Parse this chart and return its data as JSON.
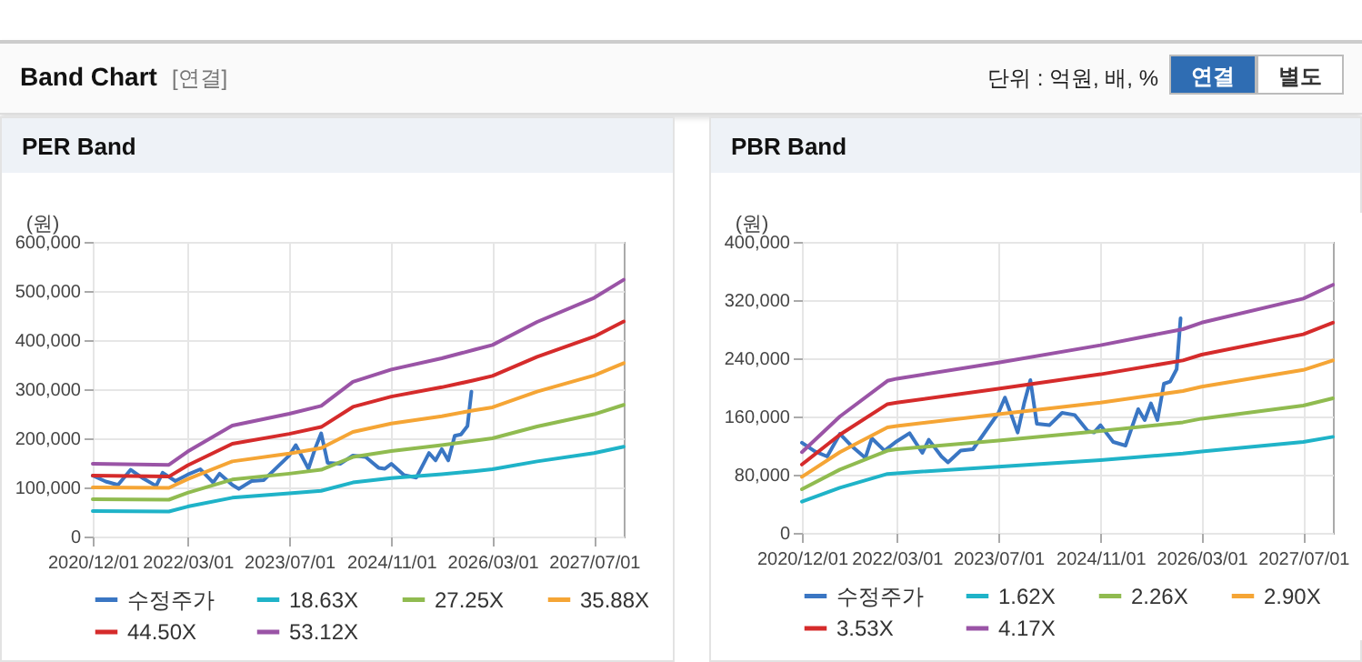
{
  "chart_data": [
    {
      "type": "line",
      "title": "PER Band",
      "ylabel": "(원)",
      "annotations": [
        "Band Chart",
        "[연결]",
        "단위 : 억원, 배, %",
        "연결",
        "별도"
      ],
      "xlim": [
        "2020-12-01",
        "2027-11-20"
      ],
      "xticks": [
        {
          "value": "2020-12-01",
          "label": "2020/12/01"
        },
        {
          "value": "2022-03-01",
          "label": "2022/03/01"
        },
        {
          "value": "2023-07-01",
          "label": "2023/07/01"
        },
        {
          "value": "2024-11-01",
          "label": "2024/11/01"
        },
        {
          "value": "2026-03-01",
          "label": "2026/03/01"
        },
        {
          "value": "2027-07-01",
          "label": "2027/07/01"
        }
      ],
      "ylim": [
        0,
        600000
      ],
      "yticks": [
        0,
        {
          "value": 100000,
          "label": "100,000"
        },
        {
          "value": 200000,
          "label": "200,000"
        },
        {
          "value": 300000,
          "label": "300,000"
        },
        {
          "value": 400000,
          "label": "400,000"
        },
        {
          "value": 500000,
          "label": "500,000"
        },
        {
          "value": 600000,
          "label": "600,000"
        }
      ],
      "grid": true,
      "legend": "bottom",
      "series": [
        {
          "name": "수정주가",
          "color": "#3a76c3",
          "x": [
            "2020-12-01",
            "2021-02-01",
            "2021-04-01",
            "2021-06-01",
            "2021-08-01",
            "2021-10-01",
            "2021-11-01",
            "2022-01-01",
            "2022-03-01",
            "2022-05-01",
            "2022-07-01",
            "2022-08-01",
            "2022-10-01",
            "2022-11-01",
            "2023-01-01",
            "2023-03-01",
            "2023-05-01",
            "2023-07-01",
            "2023-08-01",
            "2023-09-01",
            "2023-10-01",
            "2023-11-01",
            "2023-12-01",
            "2024-01-01",
            "2024-03-01",
            "2024-05-01",
            "2024-07-01",
            "2024-09-01",
            "2024-10-01",
            "2024-11-01",
            "2025-01-01",
            "2025-03-01",
            "2025-05-01",
            "2025-06-01",
            "2025-07-01",
            "2025-08-01",
            "2025-09-01",
            "2025-10-01",
            "2025-11-01",
            "2025-11-20"
          ],
          "values": [
            124000,
            112000,
            105000,
            136000,
            118000,
            103000,
            130000,
            113000,
            126000,
            137000,
            110000,
            128000,
            105000,
            97000,
            113000,
            115000,
            140000,
            165000,
            186000,
            162000,
            138000,
            178000,
            210000,
            150000,
            148000,
            165000,
            162000,
            140000,
            138000,
            148000,
            125000,
            120000,
            170000,
            155000,
            178000,
            155000,
            205000,
            208000,
            225000,
            295000
          ]
        },
        {
          "name": "18.63X",
          "color": "#1fb3c8",
          "x": [
            "2020-12-01",
            "2021-12-01",
            "2022-03-01",
            "2022-10-01",
            "2023-07-01",
            "2023-12-01",
            "2024-05-01",
            "2024-11-01",
            "2025-07-01",
            "2025-12-01",
            "2026-03-01",
            "2026-10-01",
            "2027-07-01",
            "2027-11-20"
          ],
          "values": [
            52000,
            51000,
            61000,
            79000,
            88000,
            93000,
            110000,
            119000,
            127000,
            133000,
            137000,
            153000,
            170000,
            183000
          ]
        },
        {
          "name": "27.25X",
          "color": "#90bb50",
          "x": [
            "2020-12-01",
            "2021-12-01",
            "2022-03-01",
            "2022-10-01",
            "2023-07-01",
            "2023-12-01",
            "2024-05-01",
            "2024-11-01",
            "2025-07-01",
            "2025-12-01",
            "2026-03-01",
            "2026-10-01",
            "2027-07-01",
            "2027-11-20"
          ],
          "values": [
            76000,
            75000,
            89000,
            116000,
            128000,
            136000,
            162000,
            174000,
            186000,
            195000,
            200000,
            224000,
            249000,
            268000
          ]
        },
        {
          "name": "35.88X",
          "color": "#f5a535",
          "x": [
            "2020-12-01",
            "2021-12-01",
            "2022-03-01",
            "2022-10-01",
            "2023-07-01",
            "2023-12-01",
            "2024-05-01",
            "2024-11-01",
            "2025-07-01",
            "2025-12-01",
            "2026-03-01",
            "2026-10-01",
            "2027-07-01",
            "2027-11-20"
          ],
          "values": [
            100000,
            99000,
            117000,
            153000,
            169000,
            180000,
            213000,
            230000,
            245000,
            257000,
            263000,
            295000,
            328000,
            353000
          ]
        },
        {
          "name": "44.50X",
          "color": "#d52b2b",
          "x": [
            "2020-12-01",
            "2021-12-01",
            "2022-03-01",
            "2022-10-01",
            "2023-07-01",
            "2023-12-01",
            "2024-05-01",
            "2024-11-01",
            "2025-07-01",
            "2025-12-01",
            "2026-03-01",
            "2026-10-01",
            "2027-07-01",
            "2027-11-20"
          ],
          "values": [
            124000,
            122000,
            145000,
            189000,
            209000,
            223000,
            264000,
            285000,
            304000,
            318000,
            327000,
            366000,
            407000,
            438000
          ]
        },
        {
          "name": "53.12X",
          "color": "#9a54a6",
          "x": [
            "2020-12-01",
            "2021-12-01",
            "2022-03-01",
            "2022-10-01",
            "2023-07-01",
            "2023-12-01",
            "2024-05-01",
            "2024-11-01",
            "2025-07-01",
            "2025-12-01",
            "2026-03-01",
            "2026-10-01",
            "2027-07-01",
            "2027-11-20"
          ],
          "values": [
            148000,
            146000,
            173000,
            226000,
            250000,
            266000,
            315000,
            340000,
            363000,
            380000,
            390000,
            437000,
            486000,
            523000
          ]
        }
      ]
    },
    {
      "type": "line",
      "title": "PBR Band",
      "ylabel": "(원)",
      "xlim": [
        "2020-12-01",
        "2027-11-20"
      ],
      "xticks": [
        {
          "value": "2020-12-01",
          "label": "2020/12/01"
        },
        {
          "value": "2022-03-01",
          "label": "2022/03/01"
        },
        {
          "value": "2023-07-01",
          "label": "2023/07/01"
        },
        {
          "value": "2024-11-01",
          "label": "2024/11/01"
        },
        {
          "value": "2026-03-01",
          "label": "2026/03/01"
        },
        {
          "value": "2027-07-01",
          "label": "2027/07/01"
        }
      ],
      "ylim": [
        0,
        400000
      ],
      "yticks": [
        0,
        {
          "value": 80000,
          "label": "80,000"
        },
        {
          "value": 160000,
          "label": "160,000"
        },
        {
          "value": 240000,
          "label": "240,000"
        },
        {
          "value": 320000,
          "label": "320,000"
        },
        {
          "value": 400000,
          "label": "400,000"
        }
      ],
      "grid": true,
      "legend": "bottom",
      "series": [
        {
          "name": "수정주가",
          "color": "#3a76c3",
          "x": [
            "2020-12-01",
            "2021-02-01",
            "2021-04-01",
            "2021-06-01",
            "2021-08-01",
            "2021-10-01",
            "2021-11-01",
            "2022-01-01",
            "2022-03-01",
            "2022-05-01",
            "2022-07-01",
            "2022-08-01",
            "2022-10-01",
            "2022-11-01",
            "2023-01-01",
            "2023-03-01",
            "2023-05-01",
            "2023-07-01",
            "2023-08-01",
            "2023-09-01",
            "2023-10-01",
            "2023-11-01",
            "2023-12-01",
            "2024-01-01",
            "2024-03-01",
            "2024-05-01",
            "2024-07-01",
            "2024-09-01",
            "2024-10-01",
            "2024-11-01",
            "2025-01-01",
            "2025-03-01",
            "2025-05-01",
            "2025-06-01",
            "2025-07-01",
            "2025-08-01",
            "2025-09-01",
            "2025-10-01",
            "2025-11-01",
            "2025-11-20"
          ],
          "values": [
            124000,
            112000,
            105000,
            136000,
            118000,
            103000,
            130000,
            113000,
            126000,
            137000,
            110000,
            128000,
            105000,
            97000,
            113000,
            115000,
            140000,
            165000,
            186000,
            162000,
            138000,
            178000,
            210000,
            150000,
            148000,
            165000,
            162000,
            140000,
            138000,
            148000,
            125000,
            120000,
            170000,
            155000,
            178000,
            155000,
            205000,
            208000,
            225000,
            295000
          ]
        },
        {
          "name": "1.62X",
          "color": "#1fb3c8",
          "x": [
            "2020-12-01",
            "2021-06-01",
            "2022-01-15",
            "2022-03-01",
            "2023-07-01",
            "2024-11-01",
            "2025-12-01",
            "2026-03-01",
            "2027-07-01",
            "2027-11-20"
          ],
          "values": [
            43000,
            62000,
            81000,
            82000,
            91000,
            100000,
            109000,
            112000,
            125000,
            132000
          ]
        },
        {
          "name": "2.26X",
          "color": "#90bb50",
          "x": [
            "2020-12-01",
            "2021-06-01",
            "2022-01-15",
            "2022-03-01",
            "2023-07-01",
            "2024-11-01",
            "2025-12-01",
            "2026-03-01",
            "2027-07-01",
            "2027-11-20"
          ],
          "values": [
            60000,
            87000,
            113000,
            115000,
            127000,
            140000,
            152000,
            157000,
            175000,
            185000
          ]
        },
        {
          "name": "2.90X",
          "color": "#f5a535",
          "x": [
            "2020-12-01",
            "2021-06-01",
            "2022-01-15",
            "2022-03-01",
            "2023-07-01",
            "2024-11-01",
            "2025-12-01",
            "2026-03-01",
            "2027-07-01",
            "2027-11-20"
          ],
          "values": [
            77000,
            111000,
            145000,
            147000,
            163000,
            179000,
            195000,
            201000,
            224000,
            237000
          ]
        },
        {
          "name": "3.53X",
          "color": "#d52b2b",
          "x": [
            "2020-12-01",
            "2021-06-01",
            "2022-01-15",
            "2022-03-01",
            "2023-07-01",
            "2024-11-01",
            "2025-12-01",
            "2026-03-01",
            "2027-07-01",
            "2027-11-20"
          ],
          "values": [
            94000,
            135000,
            177000,
            179000,
            198000,
            218000,
            237000,
            245000,
            273000,
            289000
          ]
        },
        {
          "name": "4.17X",
          "color": "#9a54a6",
          "x": [
            "2020-12-01",
            "2021-06-01",
            "2022-01-15",
            "2022-03-01",
            "2023-07-01",
            "2024-11-01",
            "2025-12-01",
            "2026-03-01",
            "2027-07-01",
            "2027-11-20"
          ],
          "values": [
            111000,
            160000,
            209000,
            212000,
            234000,
            258000,
            280000,
            289000,
            322000,
            341000
          ]
        }
      ]
    }
  ]
}
